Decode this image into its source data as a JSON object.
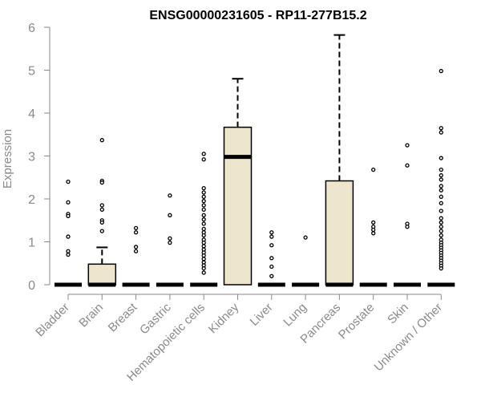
{
  "chart_data": {
    "type": "box",
    "title": "ENSG00000231605 - RP11-277B15.2",
    "xlabel": "",
    "ylabel": "Expression",
    "ylim": [
      0,
      6
    ],
    "yticks": [
      0,
      1,
      2,
      3,
      4,
      5,
      6
    ],
    "grid": false,
    "legend": "none",
    "box_fill": "#ede6cc",
    "box_stroke": "#000000",
    "axis_color": "#8a8a8a",
    "categories": [
      "Bladder",
      "Brain",
      "Breast",
      "Gastric",
      "Hematopoietic cells",
      "Kidney",
      "Liver",
      "Lung",
      "Pancreas",
      "Prostate",
      "Skin",
      "Unknown / Other"
    ],
    "boxes": [
      {
        "category": "Bladder",
        "q1": 0,
        "median": 0,
        "q3": 0,
        "whisker_low": 0,
        "whisker_high": 0,
        "outliers": [
          2.4,
          1.92,
          1.65,
          1.6,
          1.12,
          0.78,
          0.7
        ]
      },
      {
        "category": "Brain",
        "q1": 0,
        "median": 0,
        "q3": 0.48,
        "whisker_low": 0,
        "whisker_high": 0.87,
        "outliers": [
          3.37,
          2.42,
          2.38,
          1.85,
          1.75,
          1.5,
          1.45,
          1.25
        ]
      },
      {
        "category": "Breast",
        "q1": 0,
        "median": 0,
        "q3": 0,
        "whisker_low": 0,
        "whisker_high": 0,
        "outliers": [
          1.32,
          1.22,
          0.88,
          0.78
        ]
      },
      {
        "category": "Gastric",
        "q1": 0,
        "median": 0,
        "q3": 0,
        "whisker_low": 0,
        "whisker_high": 0,
        "outliers": [
          2.08,
          1.62,
          1.08,
          0.98
        ]
      },
      {
        "category": "Hematopoietic cells",
        "q1": 0,
        "median": 0,
        "q3": 0,
        "whisker_low": 0,
        "whisker_high": 0,
        "outliers": [
          3.05,
          2.92,
          2.25,
          2.15,
          2.05,
          1.95,
          1.85,
          1.75,
          1.62,
          1.52,
          1.42,
          1.3,
          1.22,
          1.15,
          1.05,
          0.98,
          0.9,
          0.82,
          0.75,
          0.68,
          0.6,
          0.52,
          0.45,
          0.38,
          0.28
        ]
      },
      {
        "category": "Kidney",
        "q1": 0,
        "median": 2.98,
        "q3": 3.67,
        "whisker_low": 0,
        "whisker_high": 4.8,
        "outliers": []
      },
      {
        "category": "Liver",
        "q1": 0,
        "median": 0,
        "q3": 0,
        "whisker_low": 0,
        "whisker_high": 0,
        "outliers": [
          1.22,
          1.12,
          0.92,
          0.62,
          0.42,
          0.2
        ]
      },
      {
        "category": "Lung",
        "q1": 0,
        "median": 0,
        "q3": 0,
        "whisker_low": 0,
        "whisker_high": 0,
        "outliers": [
          1.1
        ]
      },
      {
        "category": "Pancreas",
        "q1": 0,
        "median": 0,
        "q3": 2.42,
        "whisker_low": 0,
        "whisker_high": 5.82,
        "outliers": []
      },
      {
        "category": "Prostate",
        "q1": 0,
        "median": 0,
        "q3": 0,
        "whisker_low": 0,
        "whisker_high": 0,
        "outliers": [
          2.68,
          1.45,
          1.35,
          1.28,
          1.2
        ]
      },
      {
        "category": "Skin",
        "q1": 0,
        "median": 0,
        "q3": 0,
        "whisker_low": 0,
        "whisker_high": 0,
        "outliers": [
          3.25,
          2.78,
          1.42,
          1.35
        ]
      },
      {
        "category": "Unknown / Other",
        "q1": 0,
        "median": 0,
        "q3": 0,
        "whisker_low": 0,
        "whisker_high": 0,
        "outliers": [
          4.98,
          3.65,
          3.55,
          2.95,
          2.68,
          2.55,
          2.45,
          2.3,
          2.2,
          2.05,
          1.9,
          1.72,
          1.55,
          1.45,
          1.35,
          1.25,
          1.15,
          1.05,
          0.98,
          0.92,
          0.86,
          0.8,
          0.74,
          0.68,
          0.62,
          0.56,
          0.5,
          0.44,
          0.38
        ]
      }
    ]
  }
}
